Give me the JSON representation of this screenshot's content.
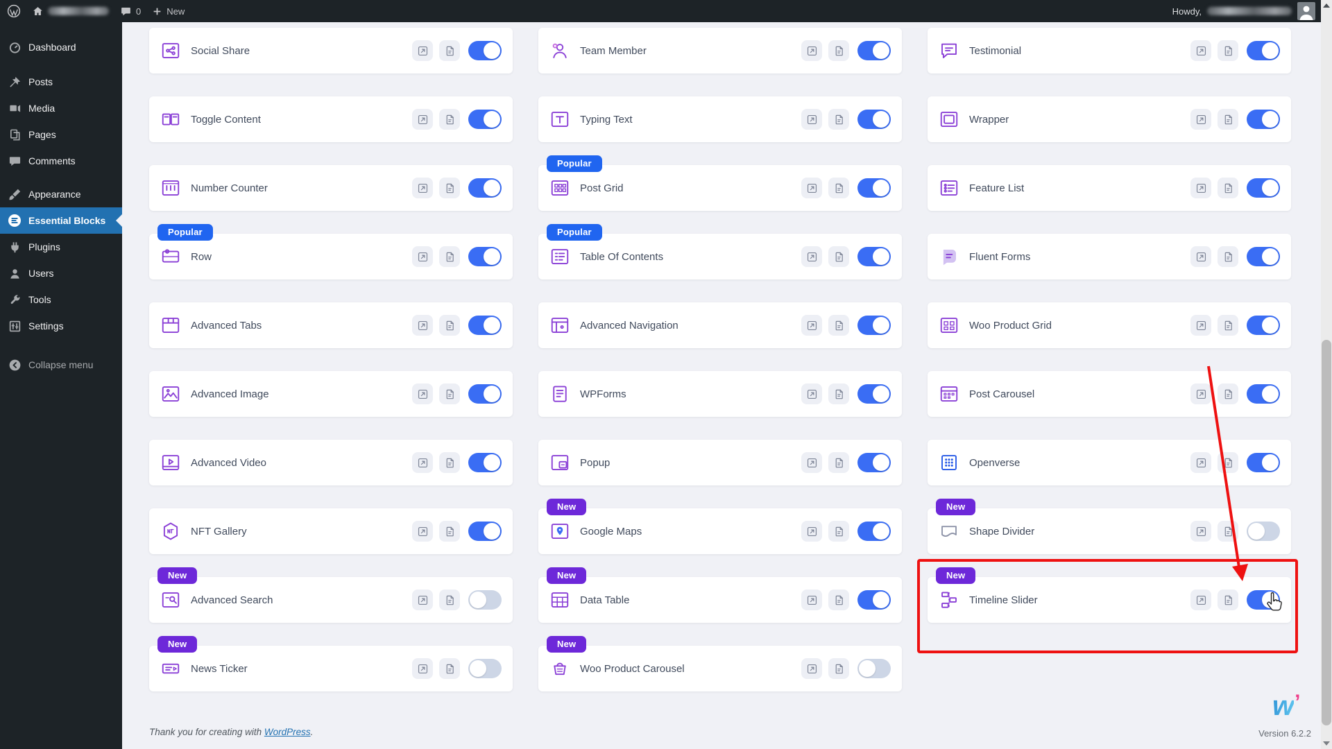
{
  "admin_bar": {
    "wp_logo_icon": "wordpress-logo",
    "home_icon": "home-icon",
    "comment_count": "0",
    "new_label": "New",
    "howdy": "Howdy,"
  },
  "sidebar": {
    "items": [
      {
        "label": "Dashboard",
        "icon": "dashboard"
      },
      {
        "label": "Posts",
        "icon": "posts"
      },
      {
        "label": "Media",
        "icon": "media"
      },
      {
        "label": "Pages",
        "icon": "pages"
      },
      {
        "label": "Comments",
        "icon": "comments"
      },
      {
        "label": "Appearance",
        "icon": "appearance"
      },
      {
        "label": "Essential Blocks",
        "icon": "essential-blocks",
        "active": true
      },
      {
        "label": "Plugins",
        "icon": "plugins"
      },
      {
        "label": "Users",
        "icon": "users"
      },
      {
        "label": "Tools",
        "icon": "tools"
      },
      {
        "label": "Settings",
        "icon": "settings"
      },
      {
        "label": "Collapse menu",
        "icon": "collapse",
        "dim": true
      }
    ]
  },
  "blocks": [
    {
      "label": "Social Share",
      "icon": "social-share",
      "badge": null,
      "state": "on"
    },
    {
      "label": "Team Member",
      "icon": "team-member",
      "badge": null,
      "state": "on"
    },
    {
      "label": "Testimonial",
      "icon": "testimonial",
      "badge": null,
      "state": "on"
    },
    {
      "label": "Toggle Content",
      "icon": "toggle-content",
      "badge": null,
      "state": "on"
    },
    {
      "label": "Typing Text",
      "icon": "typing-text",
      "badge": null,
      "state": "on"
    },
    {
      "label": "Wrapper",
      "icon": "wrapper",
      "badge": null,
      "state": "on"
    },
    {
      "label": "Number Counter",
      "icon": "number-counter",
      "badge": null,
      "state": "on"
    },
    {
      "label": "Post Grid",
      "icon": "post-grid",
      "badge": "Popular",
      "state": "on"
    },
    {
      "label": "Feature List",
      "icon": "feature-list",
      "badge": null,
      "state": "on"
    },
    {
      "label": "Row",
      "icon": "row",
      "badge": "Popular",
      "state": "on"
    },
    {
      "label": "Table Of Contents",
      "icon": "table-of-contents",
      "badge": "Popular",
      "state": "on"
    },
    {
      "label": "Fluent Forms",
      "icon": "fluent-forms",
      "badge": null,
      "state": "on"
    },
    {
      "label": "Advanced Tabs",
      "icon": "advanced-tabs",
      "badge": null,
      "state": "on"
    },
    {
      "label": "Advanced Navigation",
      "icon": "advanced-navigation",
      "badge": null,
      "state": "on"
    },
    {
      "label": "Woo Product Grid",
      "icon": "woo-product-grid",
      "badge": null,
      "state": "on"
    },
    {
      "label": "Advanced Image",
      "icon": "advanced-image",
      "badge": null,
      "state": "on"
    },
    {
      "label": "WPForms",
      "icon": "wpforms",
      "badge": null,
      "state": "on"
    },
    {
      "label": "Post Carousel",
      "icon": "post-carousel",
      "badge": null,
      "state": "on"
    },
    {
      "label": "Advanced Video",
      "icon": "advanced-video",
      "badge": null,
      "state": "on"
    },
    {
      "label": "Popup",
      "icon": "popup",
      "badge": null,
      "state": "on"
    },
    {
      "label": "Openverse",
      "icon": "openverse",
      "badge": null,
      "state": "on"
    },
    {
      "label": "NFT Gallery",
      "icon": "nft-gallery",
      "badge": null,
      "state": "on"
    },
    {
      "label": "Google Maps",
      "icon": "google-maps",
      "badge": "New",
      "state": "on"
    },
    {
      "label": "Shape Divider",
      "icon": "shape-divider",
      "badge": "New",
      "state": "off"
    },
    {
      "label": "Advanced Search",
      "icon": "advanced-search",
      "badge": "New",
      "state": "off"
    },
    {
      "label": "Data Table",
      "icon": "data-table",
      "badge": "New",
      "state": "on"
    },
    {
      "label": "Timeline Slider",
      "icon": "timeline-slider",
      "badge": "New",
      "state": "on",
      "highlighted": true
    },
    {
      "label": "News Ticker",
      "icon": "news-ticker",
      "badge": "New",
      "state": "off"
    },
    {
      "label": "Woo Product Carousel",
      "icon": "woo-product-carousel",
      "badge": "New",
      "state": "off"
    }
  ],
  "footer": {
    "thanks_prefix": "Thank you for creating with ",
    "wordpress_link": "WordPress",
    "thanks_suffix": ".",
    "version": "Version 6.2.2"
  },
  "annotation": {
    "highlight_target": "Timeline Slider"
  },
  "colors": {
    "accent_blue": "#3a6df4",
    "toggle_off": "#cdd6e6",
    "badge_popular": "#2065f0",
    "badge_new": "#6d28d9",
    "sidebar_active": "#2271b1",
    "admin_dark": "#1d2327",
    "annotation_red": "#ee1111",
    "content_bg": "#f0f1f6"
  }
}
